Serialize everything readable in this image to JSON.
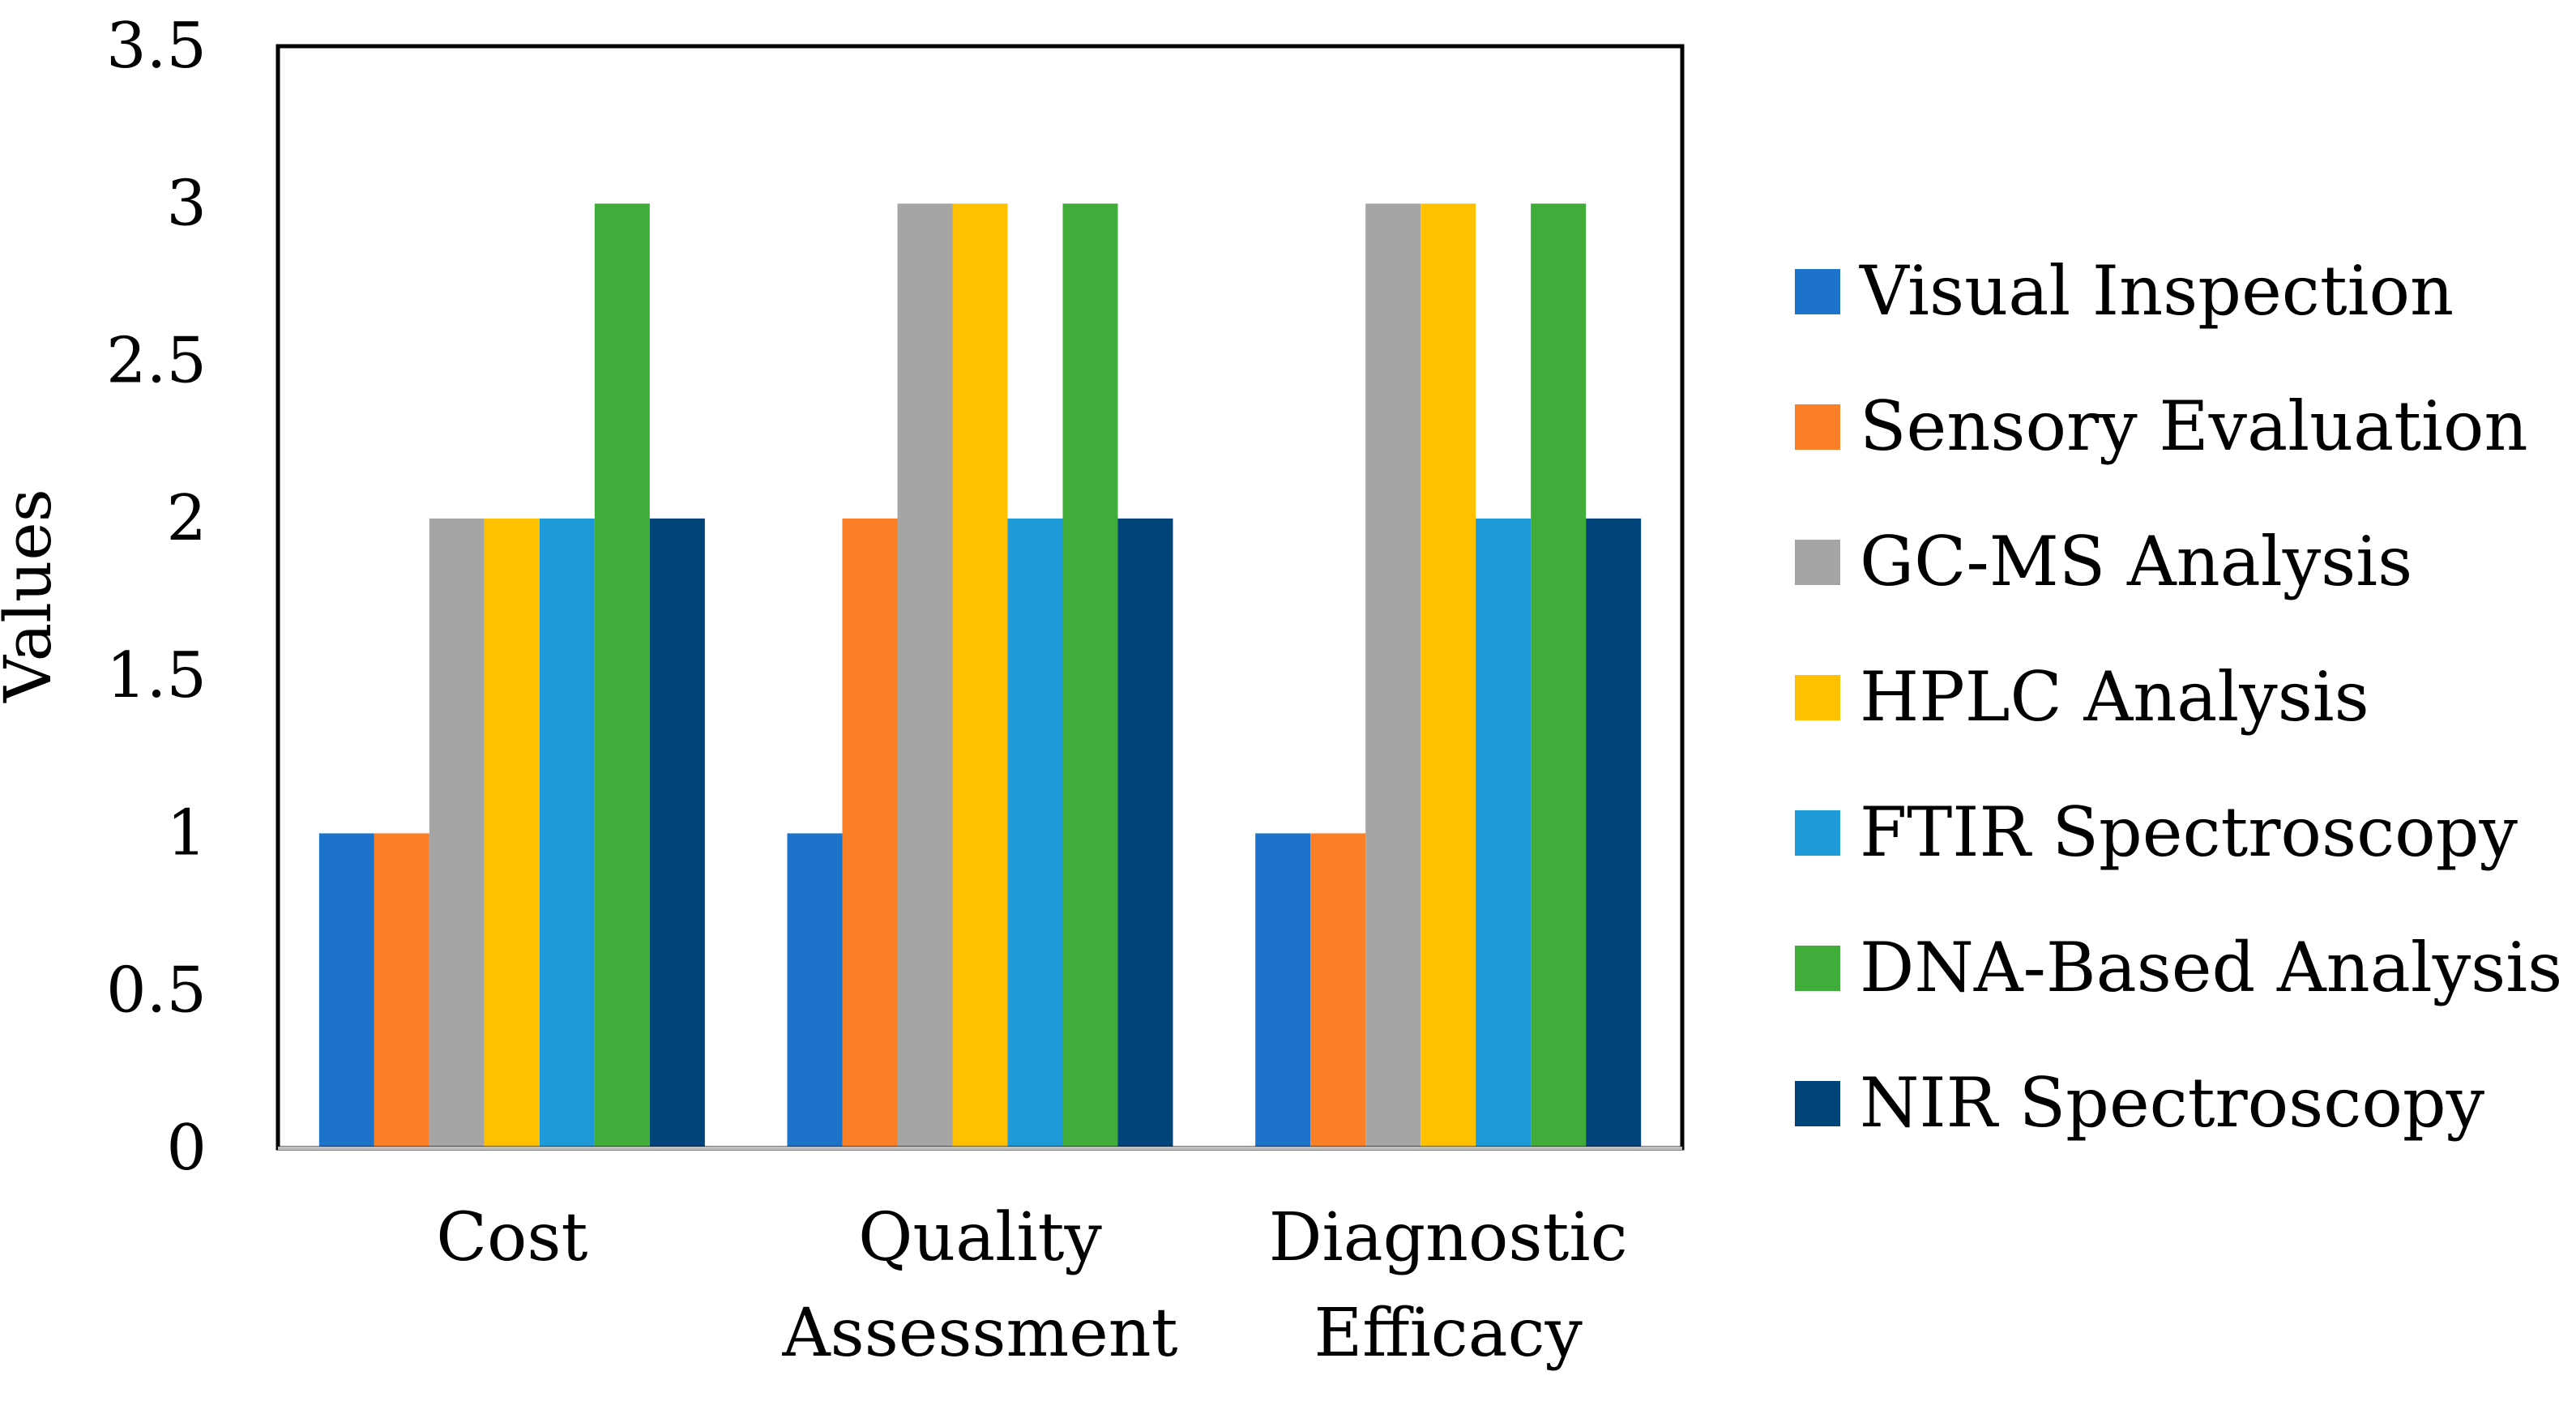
{
  "chart_data": {
    "type": "bar",
    "title": "",
    "xlabel": "",
    "ylabel": "Values",
    "ylim": [
      0,
      3.5
    ],
    "yticks": [
      "0",
      "0.5",
      "1",
      "1.5",
      "2",
      "2.5",
      "3",
      "3.5"
    ],
    "categories": [
      [
        "Cost"
      ],
      [
        "Quality",
        "Assessment"
      ],
      [
        "Diagnostic",
        "Efficacy"
      ]
    ],
    "series": [
      {
        "name": "Visual Inspection",
        "color": "#1c73c9",
        "values": [
          1,
          1,
          1
        ]
      },
      {
        "name": "Sensory Evaluation",
        "color": "#fb7f26",
        "values": [
          1,
          2,
          1
        ]
      },
      {
        "name": "GC-MS Analysis",
        "color": "#a5a5a5",
        "values": [
          2,
          3,
          3
        ]
      },
      {
        "name": "HPLC Analysis",
        "color": "#ffc000",
        "values": [
          2,
          3,
          3
        ]
      },
      {
        "name": "FTIR Spectroscopy",
        "color": "#1f9ad9",
        "values": [
          2,
          2,
          2
        ]
      },
      {
        "name": "DNA-Based Analysis",
        "color": "#40ad3a",
        "values": [
          3,
          3,
          3
        ]
      },
      {
        "name": "NIR Spectroscopy",
        "color": "#004479",
        "values": [
          2,
          2,
          2
        ]
      }
    ],
    "legend_position": "right",
    "grid": false
  }
}
